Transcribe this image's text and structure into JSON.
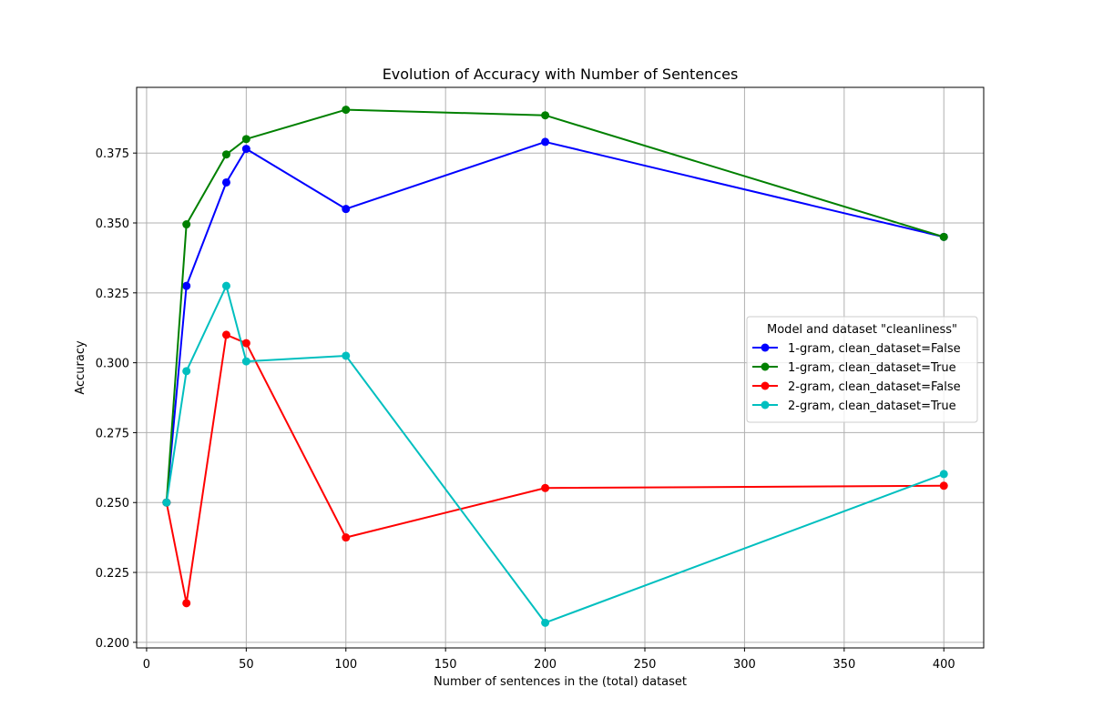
{
  "chart_data": {
    "type": "line",
    "title": "Evolution of Accuracy with Number of Sentences",
    "xlabel": "Number of sentences in the (total) dataset",
    "ylabel": "Accuracy",
    "xlim": [
      -5,
      420
    ],
    "ylim": [
      0.198,
      0.3985
    ],
    "xticks": [
      0,
      50,
      100,
      150,
      200,
      250,
      300,
      350,
      400
    ],
    "yticks": [
      0.2,
      0.225,
      0.25,
      0.275,
      0.3,
      0.325,
      0.35,
      0.375
    ],
    "ytick_labels": [
      "0.200",
      "0.225",
      "0.250",
      "0.275",
      "0.300",
      "0.325",
      "0.350",
      "0.375"
    ],
    "x": [
      10,
      20,
      40,
      50,
      100,
      200,
      400
    ],
    "grid": true,
    "legend": {
      "title": "Model and dataset \"cleanliness\"",
      "placement": "center-right"
    },
    "series": [
      {
        "name": "1-gram, clean_dataset=False",
        "color": "#0000ff",
        "values": [
          0.25,
          0.3275,
          0.3645,
          0.3765,
          0.355,
          0.379,
          0.345
        ]
      },
      {
        "name": "1-gram, clean_dataset=True",
        "color": "#008000",
        "values": [
          0.25,
          0.3495,
          0.3745,
          0.38,
          0.3905,
          0.3885,
          0.345
        ]
      },
      {
        "name": "2-gram, clean_dataset=False",
        "color": "#ff0000",
        "values": [
          0.25,
          0.214,
          0.31,
          0.307,
          0.2375,
          0.2552,
          0.256
        ]
      },
      {
        "name": "2-gram, clean_dataset=True",
        "color": "#00bfbf",
        "values": [
          0.25,
          0.297,
          0.3275,
          0.3005,
          0.3025,
          0.207,
          0.2602
        ]
      }
    ]
  }
}
